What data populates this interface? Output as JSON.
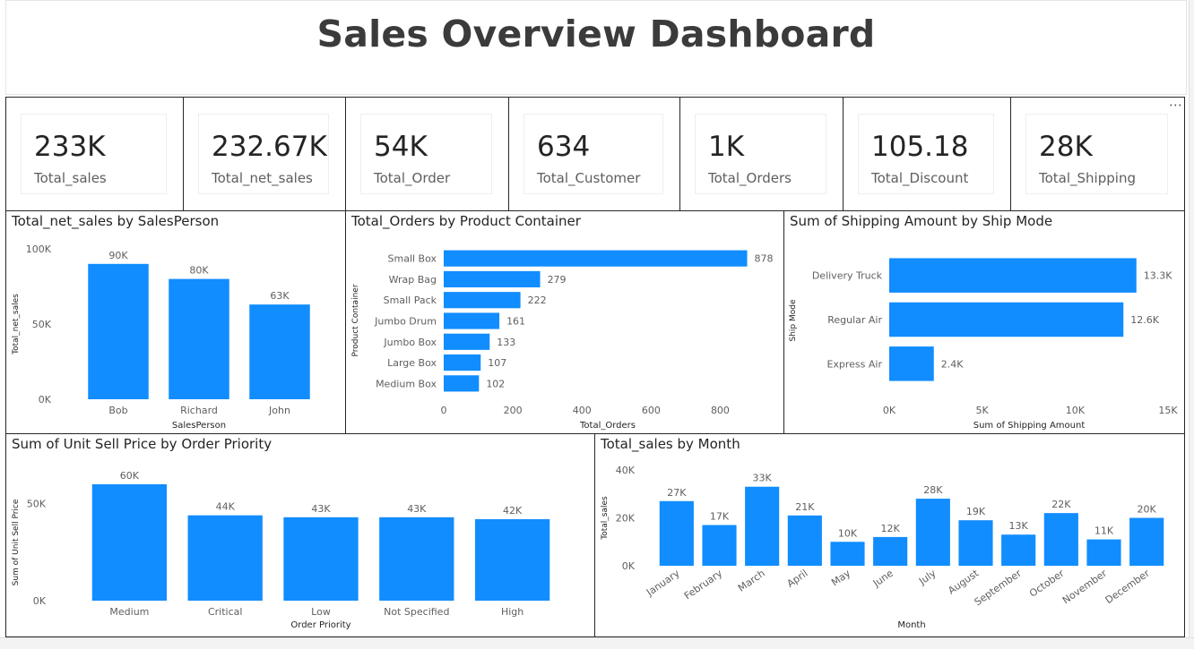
{
  "dashboard": {
    "title": "Sales Overview Dashboard"
  },
  "colors": {
    "bar": "#118DFF",
    "axis_text": "#605e5c",
    "grid": "#e1e1e1",
    "border": "#262626"
  },
  "icons": {
    "more": "more-options-icon"
  },
  "kpis": [
    {
      "value": "233K",
      "label": "Total_sales"
    },
    {
      "value": "232.67K",
      "label": "Total_net_sales"
    },
    {
      "value": "54K",
      "label": "Total_Order"
    },
    {
      "value": "634",
      "label": "Total_Customer"
    },
    {
      "value": "1K",
      "label": "Total_Orders"
    },
    {
      "value": "105.18",
      "label": "Total_Discount"
    },
    {
      "value": "28K",
      "label": "Total_Shipping"
    }
  ],
  "chart_data": [
    {
      "id": "salesperson",
      "type": "bar",
      "title": "Total_net_sales by SalesPerson",
      "xlabel": "SalesPerson",
      "ylabel": "Total_net_sales",
      "categories": [
        "Bob",
        "Richard",
        "John"
      ],
      "values": [
        90000,
        80000,
        63000
      ],
      "data_labels": [
        "90K",
        "80K",
        "63K"
      ],
      "ylim": [
        0,
        100000
      ],
      "yticks": [
        0,
        50000,
        100000
      ],
      "ytick_labels": [
        "0K",
        "50K",
        "100K"
      ],
      "grid": false
    },
    {
      "id": "container",
      "type": "bar",
      "orientation": "horizontal",
      "title": "Total_Orders by Product Container",
      "xlabel": "Total_Orders",
      "ylabel": "Product Container",
      "categories": [
        "Small Box",
        "Wrap Bag",
        "Small Pack",
        "Jumbo Drum",
        "Jumbo Box",
        "Large Box",
        "Medium Box"
      ],
      "values": [
        878,
        279,
        222,
        161,
        133,
        107,
        102
      ],
      "data_labels": [
        "878",
        "279",
        "222",
        "161",
        "133",
        "107",
        "102"
      ],
      "xlim": [
        0,
        900
      ],
      "xticks": [
        0,
        200,
        400,
        600,
        800
      ],
      "xtick_labels": [
        "0",
        "200",
        "400",
        "600",
        "800"
      ],
      "grid": false
    },
    {
      "id": "shipmode",
      "type": "bar",
      "orientation": "horizontal",
      "title": "Sum of Shipping Amount by Ship Mode",
      "xlabel": "Sum of Shipping Amount",
      "ylabel": "Ship Mode",
      "categories": [
        "Delivery Truck",
        "Regular Air",
        "Express Air"
      ],
      "values": [
        13300,
        12600,
        2400
      ],
      "data_labels": [
        "13.3K",
        "12.6K",
        "2.4K"
      ],
      "xlim": [
        0,
        15000
      ],
      "xticks": [
        0,
        5000,
        10000,
        15000
      ],
      "xtick_labels": [
        "0K",
        "5K",
        "10K",
        "15K"
      ],
      "grid": false
    },
    {
      "id": "priority",
      "type": "bar",
      "title": "Sum of Unit Sell Price by Order Priority",
      "xlabel": "Order Priority",
      "ylabel": "Sum of Unit Sell Price",
      "categories": [
        "Medium",
        "Critical",
        "Low",
        "Not Specified",
        "High"
      ],
      "values": [
        60000,
        44000,
        43000,
        43000,
        42000
      ],
      "data_labels": [
        "60K",
        "44K",
        "43K",
        "43K",
        "42K"
      ],
      "ylim": [
        0,
        60000
      ],
      "yticks": [
        0,
        50000
      ],
      "ytick_labels": [
        "0K",
        "50K"
      ],
      "grid": false
    },
    {
      "id": "month",
      "type": "bar",
      "title": "Total_sales by Month",
      "xlabel": "Month",
      "ylabel": "Total_sales",
      "categories": [
        "January",
        "February",
        "March",
        "April",
        "May",
        "June",
        "July",
        "August",
        "September",
        "October",
        "November",
        "December"
      ],
      "values": [
        27000,
        17000,
        33000,
        21000,
        10000,
        12000,
        28000,
        19000,
        13000,
        22000,
        11000,
        20000
      ],
      "data_labels": [
        "27K",
        "17K",
        "33K",
        "21K",
        "10K",
        "12K",
        "28K",
        "19K",
        "13K",
        "22K",
        "11K",
        "20K"
      ],
      "ylim": [
        0,
        40000
      ],
      "yticks": [
        0,
        20000,
        40000
      ],
      "ytick_labels": [
        "0K",
        "20K",
        "40K"
      ],
      "grid": false
    }
  ]
}
